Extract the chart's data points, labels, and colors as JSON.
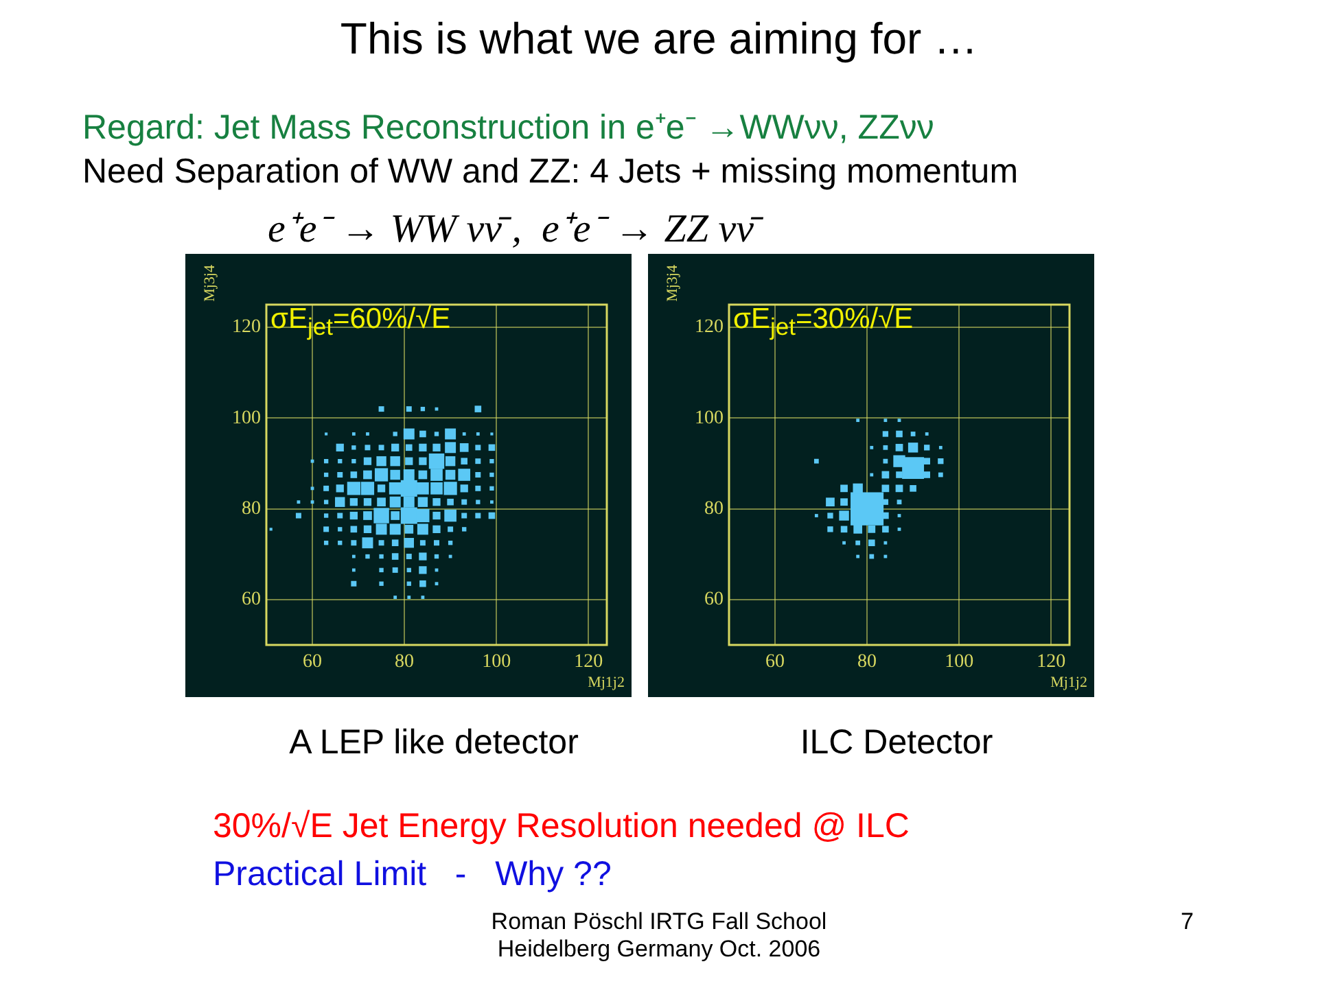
{
  "chart_data": [
    {
      "type": "bubble",
      "title": "σE$_{jet}$=60%/√E",
      "xlabel": "Mj1j2",
      "ylabel": "Mj3j4",
      "marker": "square",
      "grid": true,
      "xlim": [
        50,
        124
      ],
      "ylim": [
        50,
        125
      ],
      "xticks": [
        60,
        80,
        100,
        120
      ],
      "yticks": [
        60,
        80,
        100,
        120
      ],
      "annotations": [
        "This is what we are aiming for …",
        "Regard: Jet Mass Reconstruction in e⁺e⁻ →WWνν, ZZνν",
        "Need Separation of WW and ZZ: 4 Jets + missing momentum",
        "e⁺e⁻ → WW νν̄ ,  e⁺e⁻ → ZZ νν̄",
        "A LEP like detector",
        "30%/√E Jet Energy Resolution needed @ ILC",
        "Practical Limit   -   Why ??",
        "Roman Pöschl IRTG Fall School\nHeidelberg Germany Oct. 2006",
        "7"
      ],
      "series": [
        {
          "color": "#5bc8f5",
          "x": [
            81,
            84,
            90,
            87,
            93,
            78,
            72,
            96,
            69,
            63,
            99,
            75,
            81,
            96,
            84,
            87,
            66,
            69,
            72,
            75,
            78,
            81,
            84,
            87,
            90,
            93,
            96,
            99,
            60,
            63,
            66,
            69,
            72,
            75,
            78,
            81,
            84,
            87,
            90,
            93,
            96,
            99,
            63,
            66,
            69,
            72,
            75,
            78,
            81,
            84,
            87,
            90,
            93,
            96,
            99,
            60,
            63,
            66,
            69,
            72,
            75,
            78,
            81,
            84,
            87,
            90,
            93,
            96,
            99,
            57,
            60,
            63,
            66,
            69,
            72,
            75,
            78,
            81,
            84,
            87,
            90,
            93,
            96,
            99,
            57,
            63,
            66,
            69,
            72,
            75,
            78,
            81,
            84,
            87,
            90,
            93,
            96,
            99,
            51,
            63,
            66,
            69,
            72,
            75,
            78,
            81,
            84,
            87,
            90,
            93,
            63,
            66,
            69,
            72,
            75,
            78,
            81,
            84,
            87,
            90,
            69,
            72,
            75,
            78,
            81,
            84,
            87,
            90,
            69,
            75,
            78,
            81,
            84,
            87,
            69,
            75,
            81,
            84,
            87,
            78,
            81,
            84
          ],
          "values": [
            96.5,
            96.5,
            96.5,
            96.5,
            96.5,
            96.5,
            96.5,
            96.5,
            96.5,
            96.5,
            96.5,
            102,
            102,
            102,
            102,
            102,
            93.5,
            93.5,
            93.5,
            93.5,
            93.5,
            93.5,
            93.5,
            93.5,
            93.5,
            93.5,
            93.5,
            93.5,
            90.5,
            90.5,
            90.5,
            90.5,
            90.5,
            90.5,
            90.5,
            90.5,
            90.5,
            90.5,
            90.5,
            90.5,
            90.5,
            90.5,
            87.5,
            87.5,
            87.5,
            87.5,
            87.5,
            87.5,
            87.5,
            87.5,
            87.5,
            87.5,
            87.5,
            87.5,
            87.5,
            84.5,
            84.5,
            84.5,
            84.5,
            84.5,
            84.5,
            84.5,
            84.5,
            84.5,
            84.5,
            84.5,
            84.5,
            84.5,
            84.5,
            81.5,
            81.5,
            81.5,
            81.5,
            81.5,
            81.5,
            81.5,
            81.5,
            81.5,
            81.5,
            81.5,
            81.5,
            81.5,
            81.5,
            81.5,
            78.5,
            78.5,
            78.5,
            78.5,
            78.5,
            78.5,
            78.5,
            78.5,
            78.5,
            78.5,
            78.5,
            78.5,
            78.5,
            78.5,
            75.5,
            75.5,
            75.5,
            75.5,
            75.5,
            75.5,
            75.5,
            75.5,
            75.5,
            75.5,
            75.5,
            75.5,
            72.5,
            72.5,
            72.5,
            72.5,
            72.5,
            72.5,
            72.5,
            72.5,
            72.5,
            72.5,
            69.5,
            69.5,
            69.5,
            69.5,
            69.5,
            69.5,
            69.5,
            69.5,
            66.5,
            66.5,
            66.5,
            66.5,
            66.5,
            66.5,
            63.5,
            63.5,
            63.5,
            63.5,
            63.5,
            60.5,
            60.5,
            60.5
          ],
          "sizes": [
            0.44,
            0.16,
            0.44,
            0.07,
            0.04,
            0.07,
            0.04,
            0.04,
            0.04,
            0.03,
            0.03,
            0.11,
            0.11,
            0.16,
            0.07,
            0.04,
            0.22,
            0.07,
            0.11,
            0.11,
            0.22,
            0.16,
            0.22,
            0.22,
            0.44,
            0.28,
            0.11,
            0.16,
            0.04,
            0.07,
            0.07,
            0.07,
            0.22,
            0.36,
            0.36,
            0.22,
            0.22,
            0.87,
            0.36,
            0.16,
            0.11,
            0.07,
            0.07,
            0.11,
            0.16,
            0.28,
            0.64,
            0.36,
            0.44,
            0.28,
            0.54,
            0.36,
            0.54,
            0.11,
            0.07,
            0.04,
            0.11,
            0.22,
            0.64,
            0.64,
            0.22,
            0.54,
            1,
            0.54,
            0.54,
            0.64,
            0.22,
            0.11,
            0.07,
            0.04,
            0.04,
            0.07,
            0.36,
            0.22,
            0.22,
            0.28,
            0.44,
            0.44,
            0.36,
            0.22,
            0.16,
            0.11,
            0.07,
            0.04,
            0.11,
            0.07,
            0.11,
            0.22,
            0.28,
            0.87,
            0.28,
            1,
            0.64,
            0.22,
            0.54,
            0.11,
            0.11,
            0.16,
            0.03,
            0.11,
            0.07,
            0.16,
            0.22,
            0.44,
            0.44,
            0.28,
            0.44,
            0.22,
            0.11,
            0.07,
            0.07,
            0.07,
            0.11,
            0.44,
            0.11,
            0.16,
            0.36,
            0.11,
            0.11,
            0.07,
            0.04,
            0.07,
            0.07,
            0.16,
            0.11,
            0.22,
            0.07,
            0.04,
            0.04,
            0.07,
            0.11,
            0.07,
            0.22,
            0.04,
            0.11,
            0.07,
            0.07,
            0.16,
            0.04,
            0.04,
            0.04,
            0.04
          ]
        }
      ]
    },
    {
      "type": "bubble",
      "title": "σE$_{jet}$=30%/√E",
      "xlabel": "Mj1j2",
      "ylabel": "Mj3j4",
      "marker": "square",
      "grid": true,
      "xlim": [
        50,
        124
      ],
      "ylim": [
        50,
        125
      ],
      "xticks": [
        60,
        80,
        100,
        120
      ],
      "yticks": [
        60,
        80,
        100,
        120
      ],
      "annotations": [
        "ILC Detector"
      ],
      "series": [
        {
          "color": "#5bc8f5",
          "x": [
            80,
            90,
            84,
            87,
            90,
            93,
            81,
            84,
            87,
            90,
            93,
            96,
            69,
            84,
            87,
            93,
            96,
            81,
            84,
            87,
            93,
            96,
            75,
            78,
            84,
            87,
            90,
            72,
            75,
            84,
            87,
            69,
            72,
            75,
            84,
            87,
            72,
            75,
            78,
            81,
            84,
            87,
            75,
            78,
            81,
            84,
            78,
            81,
            84,
            78,
            84,
            87
          ],
          "values": [
            80,
            89,
            96.5,
            96.5,
            96.5,
            96.5,
            93.5,
            93.5,
            93.5,
            93.5,
            93.5,
            93.5,
            90.5,
            90.5,
            90.5,
            90.5,
            90.5,
            87.5,
            87.5,
            87.5,
            87.5,
            87.5,
            84.5,
            84.5,
            84.5,
            84.5,
            84.5,
            81.5,
            81.5,
            81.5,
            81.5,
            78.5,
            78.5,
            78.5,
            78.5,
            78.5,
            75.5,
            75.5,
            75.5,
            75.5,
            75.5,
            75.5,
            72.5,
            72.5,
            72.5,
            72.5,
            69.5,
            69.5,
            69.5,
            99.5,
            99.5,
            99.5
          ],
          "sizes": [
            1,
            0.44,
            0.03,
            0.04,
            0.02,
            0.01,
            0.01,
            0.02,
            0.05,
            0.09,
            0.03,
            0.01,
            0.02,
            0.02,
            0.13,
            0.04,
            0.03,
            0.01,
            0.05,
            0.04,
            0.04,
            0.02,
            0.05,
            0.09,
            0.05,
            0.05,
            0.04,
            0.07,
            0.05,
            0.03,
            0.02,
            0.01,
            0.03,
            0.09,
            0.04,
            0.01,
            0.03,
            0.04,
            0.07,
            0.05,
            0.04,
            0.01,
            0.01,
            0.02,
            0.04,
            0.01,
            0.01,
            0.02,
            0.01,
            0.01,
            0.01,
            0.01
          ]
        }
      ]
    }
  ]
}
